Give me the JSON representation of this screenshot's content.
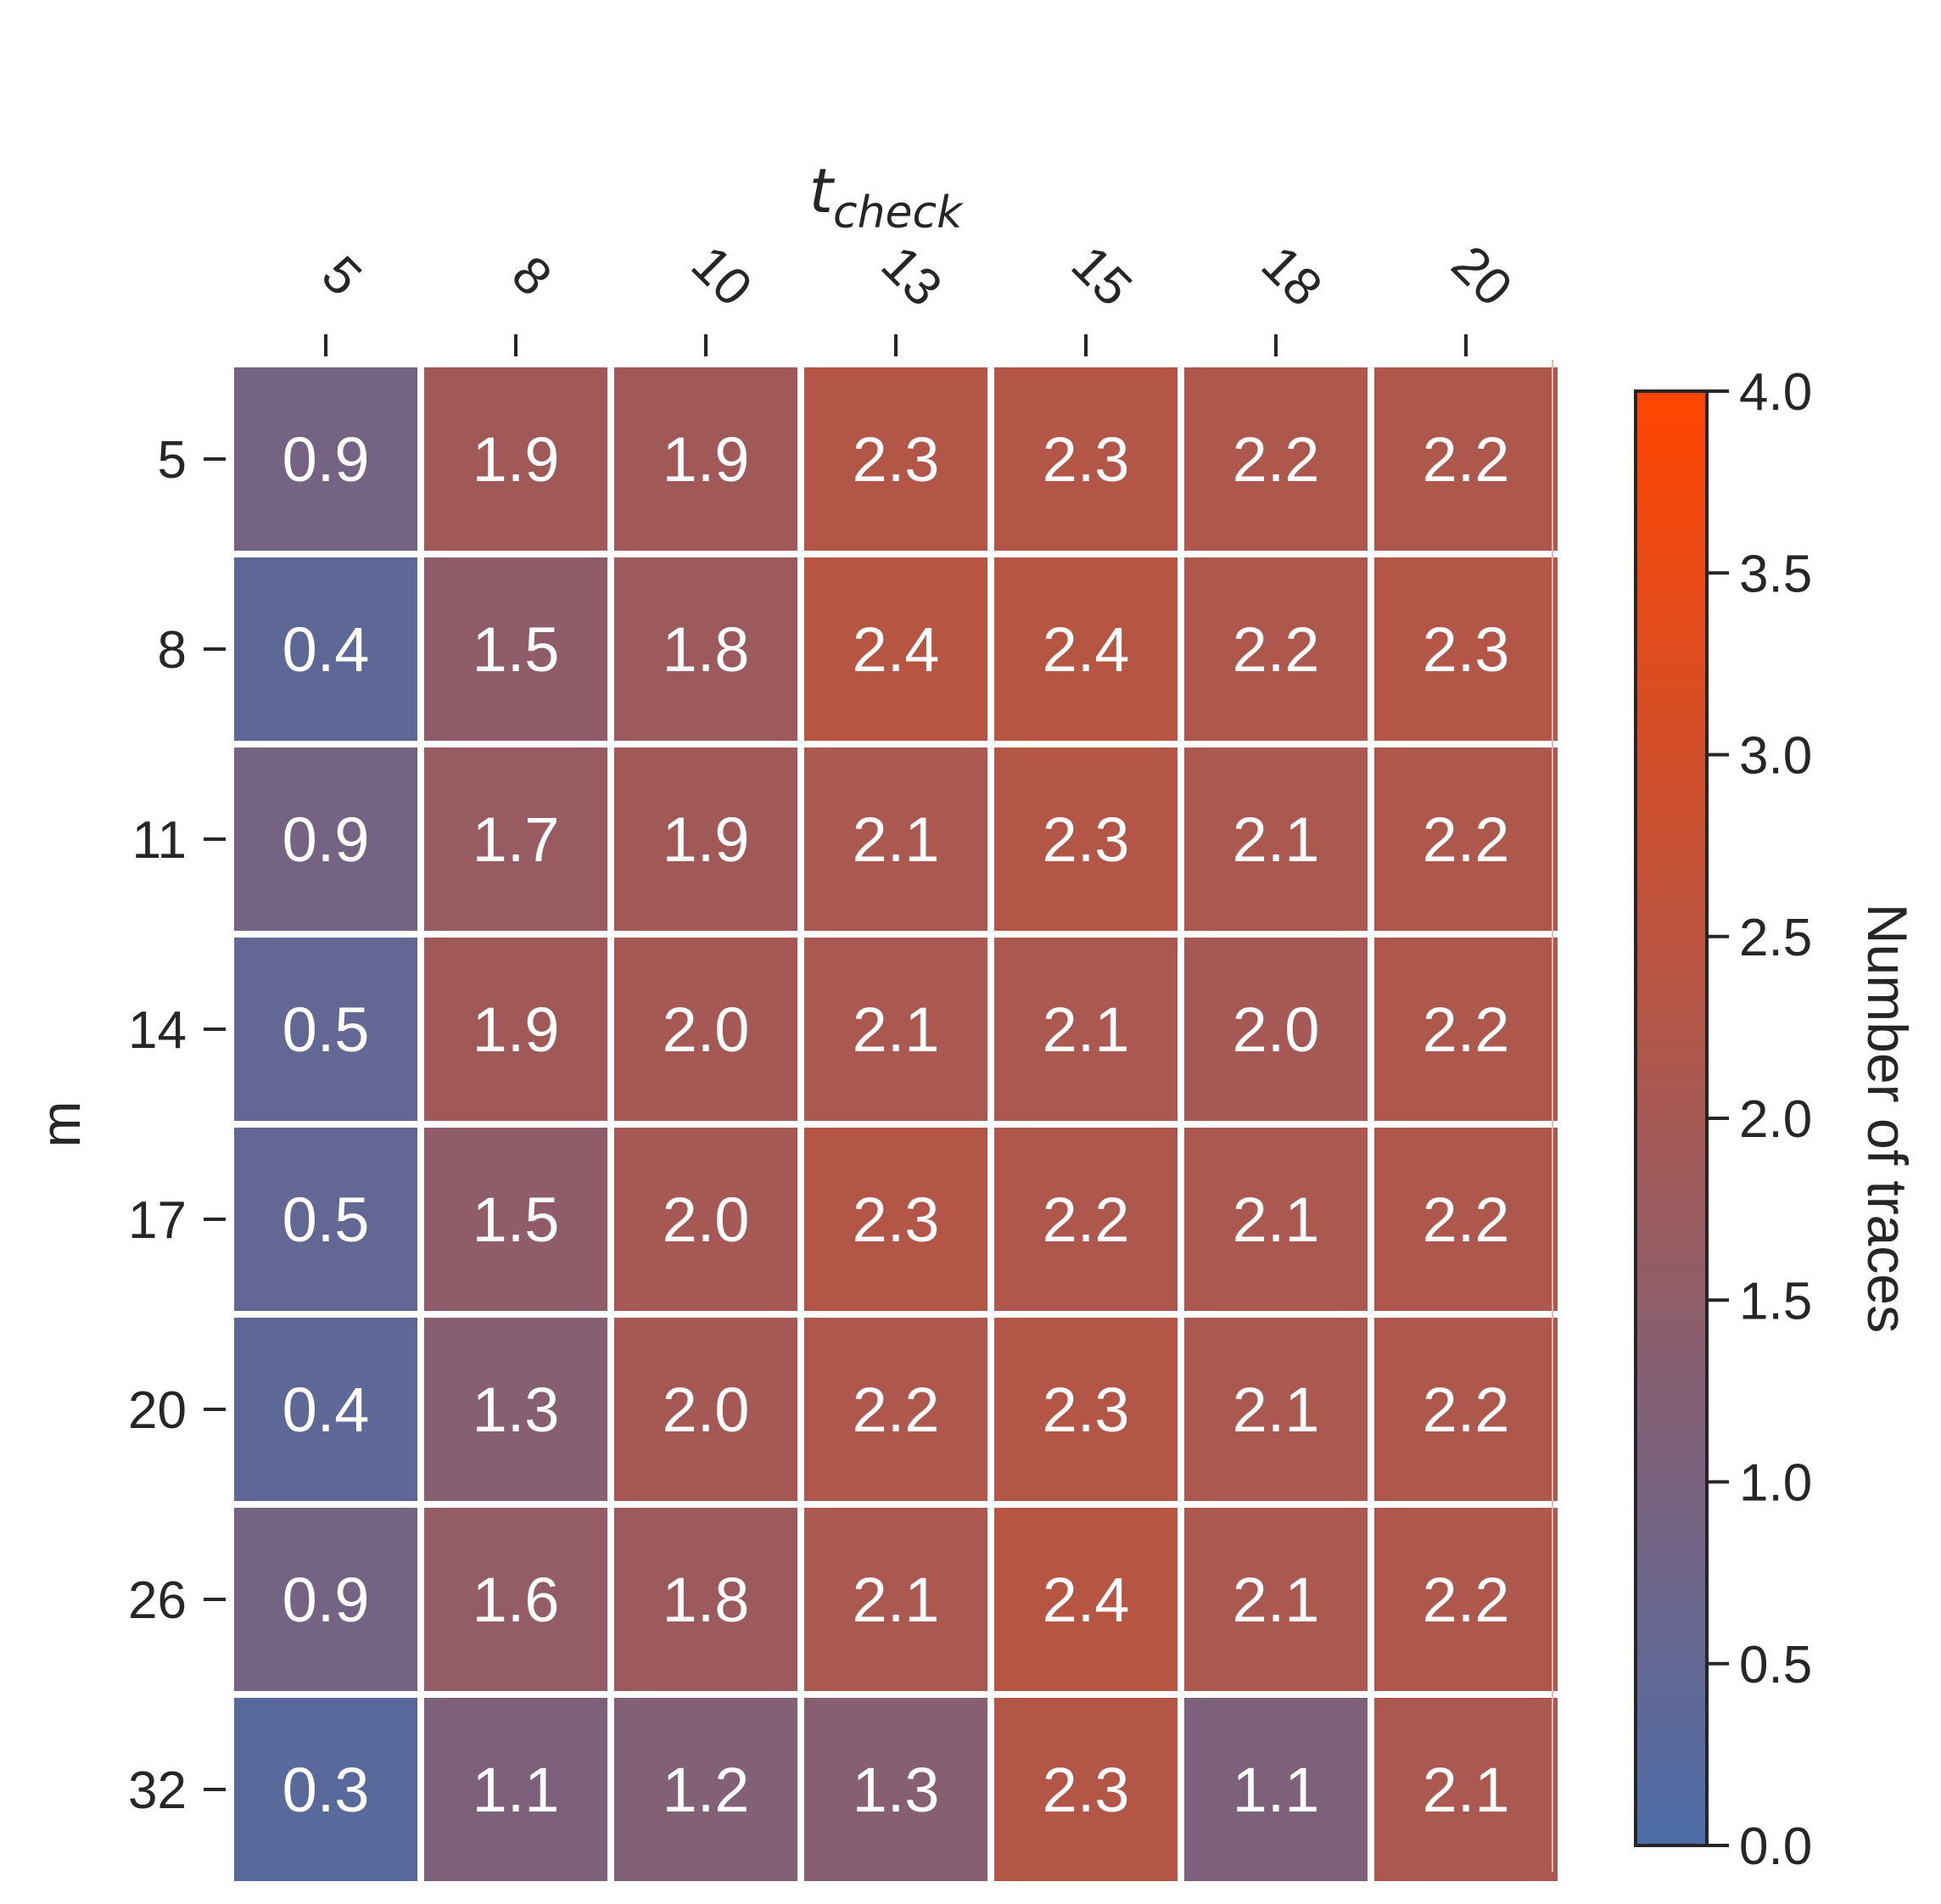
{
  "chart_data": {
    "type": "heatmap",
    "xlabel": "t",
    "xlabel_subscript": "check",
    "ylabel": "m",
    "x_ticks": [
      "5",
      "8",
      "10",
      "13",
      "15",
      "18",
      "20"
    ],
    "y_ticks": [
      "5",
      "8",
      "11",
      "14",
      "17",
      "20",
      "26",
      "32"
    ],
    "values": [
      [
        0.9,
        1.9,
        1.9,
        2.3,
        2.3,
        2.2,
        2.2
      ],
      [
        0.4,
        1.5,
        1.8,
        2.4,
        2.4,
        2.2,
        2.3
      ],
      [
        0.9,
        1.7,
        1.9,
        2.1,
        2.3,
        2.1,
        2.2
      ],
      [
        0.5,
        1.9,
        2.0,
        2.1,
        2.1,
        2.0,
        2.2
      ],
      [
        0.5,
        1.5,
        2.0,
        2.3,
        2.2,
        2.1,
        2.2
      ],
      [
        0.4,
        1.3,
        2.0,
        2.2,
        2.3,
        2.1,
        2.2
      ],
      [
        0.9,
        1.6,
        1.8,
        2.1,
        2.4,
        2.1,
        2.2
      ],
      [
        0.3,
        1.1,
        1.2,
        1.3,
        2.3,
        1.1,
        2.1
      ]
    ],
    "cell_labels": [
      [
        "0.9",
        "1.9",
        "1.9",
        "2.3",
        "2.3",
        "2.2",
        "2.2"
      ],
      [
        "0.4",
        "1.5",
        "1.8",
        "2.4",
        "2.4",
        "2.2",
        "2.3"
      ],
      [
        "0.9",
        "1.7",
        "1.9",
        "2.1",
        "2.3",
        "2.1",
        "2.2"
      ],
      [
        "0.5",
        "1.9",
        "2.0",
        "2.1",
        "2.1",
        "2.0",
        "2.2"
      ],
      [
        "0.5",
        "1.5",
        "2.0",
        "2.3",
        "2.2",
        "2.1",
        "2.2"
      ],
      [
        "0.4",
        "1.3",
        "2.0",
        "2.2",
        "2.3",
        "2.1",
        "2.2"
      ],
      [
        "0.9",
        "1.6",
        "1.8",
        "2.1",
        "2.4",
        "2.1",
        "2.2"
      ],
      [
        "0.3",
        "1.1",
        "1.2",
        "1.3",
        "2.3",
        "1.1",
        "2.1"
      ]
    ],
    "x_axis_position": "top",
    "colorbar": {
      "label": "Number of traces",
      "range": [
        0.0,
        4.0
      ],
      "ticks": [
        "0.0",
        "0.5",
        "1.0",
        "1.5",
        "2.0",
        "2.5",
        "3.0",
        "3.5",
        "4.0"
      ],
      "tick_values": [
        0.0,
        0.5,
        1.0,
        1.5,
        2.0,
        2.5,
        3.0,
        3.5,
        4.0
      ],
      "color_low": "#4c6ca8",
      "color_high": "#ff4500"
    }
  }
}
